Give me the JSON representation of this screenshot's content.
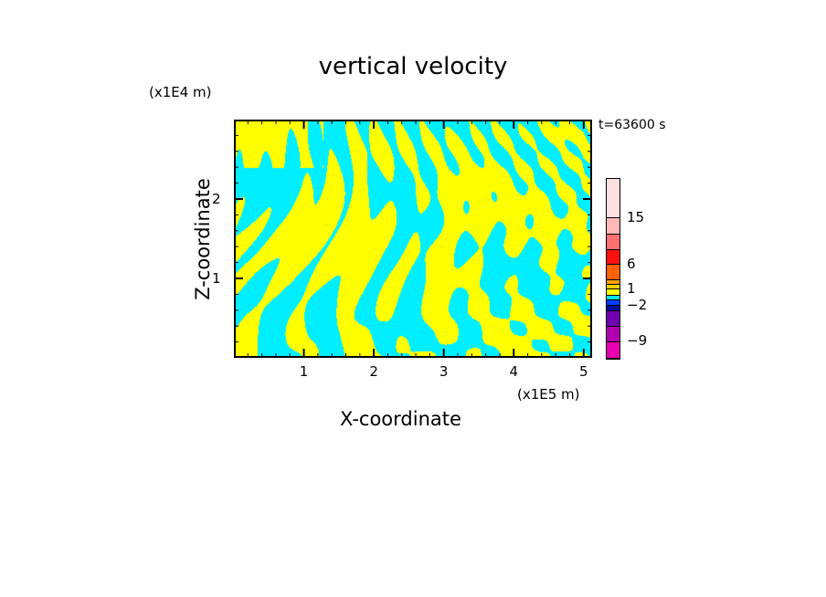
{
  "chart_data": {
    "type": "heatmap",
    "title": "vertical velocity",
    "xlabel": "X-coordinate",
    "ylabel": "Z-coordinate",
    "x_unit": "(x1E5 m)",
    "y_unit": "(x1E4 m)",
    "time_label": "t=63600 s",
    "xlim": [
      0,
      5.12
    ],
    "ylim": [
      0,
      3
    ],
    "xticks": [
      "1",
      "2",
      "3",
      "4",
      "5"
    ],
    "xtick_values": [
      1,
      2,
      3,
      4,
      5
    ],
    "yticks": [
      "1",
      "2"
    ],
    "ytick_values": [
      1,
      2
    ],
    "colorbar": {
      "labels": [
        "15",
        "6",
        "1",
        "−2",
        "−9"
      ],
      "colors": [
        "#ffe0e0",
        "#ffb8b8",
        "#ff7070",
        "#ff1010",
        "#ff6000",
        "#ffa000",
        "#ffd000",
        "#ffff00",
        "#00e8ff",
        "#0040ff",
        "#0010a0",
        "#7000b0",
        "#b000b0",
        "#e800b0"
      ]
    },
    "dominant_colors": {
      "positive": "#ffff00",
      "negative": "#00eeff"
    }
  }
}
